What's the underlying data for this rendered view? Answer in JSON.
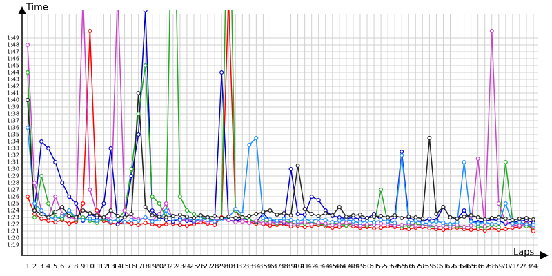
{
  "chart_data": {
    "type": "line",
    "x_label": "Laps",
    "y_label": "Time",
    "grid": true,
    "categories": [
      "1",
      "2",
      "3",
      "4",
      "5",
      "6",
      "7",
      "8",
      "9",
      "10",
      "11",
      "12",
      "13",
      "14",
      "15",
      "16",
      "17",
      "18",
      "19",
      "20",
      "21",
      "22",
      "23",
      "24",
      "25",
      "26",
      "27",
      "28",
      "29",
      "30",
      "31",
      "32",
      "33",
      "34",
      "35",
      "36",
      "37",
      "38",
      "39",
      "40",
      "41",
      "42",
      "43",
      "44",
      "45",
      "46",
      "47",
      "48",
      "49",
      "50",
      "51",
      "52",
      "53",
      "54",
      "55",
      "56",
      "57",
      "58",
      "59",
      "60",
      "61",
      "62",
      "63",
      "64",
      "65",
      "66",
      "67",
      "68",
      "69",
      "70",
      "71",
      "72",
      "73",
      "74"
    ],
    "ylim": [
      78,
      113
    ],
    "yticks": [
      {
        "value": 79,
        "label": "1:19"
      },
      {
        "value": 80,
        "label": "1:20"
      },
      {
        "value": 81,
        "label": "1:21"
      },
      {
        "value": 82,
        "label": "1:22"
      },
      {
        "value": 83,
        "label": "1:23"
      },
      {
        "value": 84,
        "label": "1:24"
      },
      {
        "value": 85,
        "label": "1:25"
      },
      {
        "value": 86,
        "label": "1:26"
      },
      {
        "value": 87,
        "label": "1:27"
      },
      {
        "value": 88,
        "label": "1:28"
      },
      {
        "value": 89,
        "label": "1:29"
      },
      {
        "value": 90,
        "label": "1:30"
      },
      {
        "value": 91,
        "label": "1:31"
      },
      {
        "value": 92,
        "label": "1:32"
      },
      {
        "value": 93,
        "label": "1:33"
      },
      {
        "value": 94,
        "label": "1:34"
      },
      {
        "value": 95,
        "label": "1:35"
      },
      {
        "value": 96,
        "label": "1:36"
      },
      {
        "value": 97,
        "label": "1:37"
      },
      {
        "value": 98,
        "label": "1:38"
      },
      {
        "value": 99,
        "label": "1:39"
      },
      {
        "value": 100,
        "label": "1:40"
      },
      {
        "value": 101,
        "label": "1:41"
      },
      {
        "value": 102,
        "label": "1:42"
      },
      {
        "value": 103,
        "label": "1:43"
      },
      {
        "value": 104,
        "label": "1:44"
      },
      {
        "value": 105,
        "label": "1:45"
      },
      {
        "value": 106,
        "label": "1:46"
      },
      {
        "value": 107,
        "label": "1:47"
      },
      {
        "value": 108,
        "label": "1:48"
      },
      {
        "value": 109,
        "label": "1:49"
      }
    ],
    "series": [
      {
        "color": "#ff0000",
        "values": [
          86,
          83.5,
          82.8,
          82.5,
          82.3,
          82.6,
          82.1,
          82.4,
          85,
          110,
          84,
          82.5,
          82.2,
          82,
          82.3,
          82.1,
          81.9,
          82.2,
          82,
          81.8,
          82,
          82.1,
          81.9,
          81.8,
          82,
          82.3,
          82.1,
          81.9,
          83,
          115,
          84,
          82.5,
          82.3,
          82.1,
          82,
          81.8,
          81.9,
          82,
          81.7,
          81.8,
          81.6,
          81.8,
          81.9,
          81.7,
          81.5,
          81.6,
          81.8,
          81.7,
          81.5,
          81.6,
          81.4,
          81.5,
          81.7,
          81.6,
          81.4,
          81.3,
          81.5,
          81.6,
          81.4,
          81.3,
          81.2,
          81.4,
          81.5,
          81.3,
          81.2,
          81.3,
          81.1,
          81.4,
          81.2,
          81.3,
          81.5,
          81.6,
          82.2,
          81
        ]
      },
      {
        "color": "#0000cc",
        "values": [
          100,
          84,
          94,
          93,
          91,
          88,
          86,
          85,
          82.5,
          83.5,
          83,
          85,
          93,
          82,
          83,
          89,
          95,
          113,
          84,
          83,
          82.6,
          82.4,
          82.8,
          82.5,
          82.3,
          82.7,
          83,
          82.5,
          104,
          82.6,
          82.4,
          82.8,
          82.6,
          82.3,
          83.6,
          82.5,
          82.4,
          82.2,
          90,
          83.5,
          83.4,
          86,
          85.5,
          84,
          83.2,
          83,
          82.8,
          83,
          82.7,
          82.9,
          83.5,
          82.6,
          82.4,
          83,
          92.5,
          83,
          82.5,
          82.4,
          82.8,
          82.6,
          84.5,
          83,
          82.8,
          84,
          82.5,
          82.3,
          82.4,
          82.7,
          82.5,
          82.1,
          82.3,
          82.4,
          82.6,
          82.2
        ]
      },
      {
        "color": "#22aa22",
        "values": [
          104,
          83,
          89,
          85,
          83,
          82.8,
          84,
          82.6,
          83,
          82.5,
          82.2,
          82.8,
          82.4,
          82.6,
          84,
          90,
          98,
          105,
          86,
          85,
          83,
          140,
          86,
          84,
          83.5,
          83,
          82.7,
          82.5,
          82.8,
          140,
          84,
          83,
          82.6,
          82.4,
          82.5,
          82.3,
          82.1,
          82.4,
          82.2,
          82,
          82.1,
          82.3,
          82,
          81.9,
          82.2,
          82,
          81.8,
          82.1,
          81.9,
          81.8,
          82,
          87,
          82.1,
          81.9,
          81.7,
          81.8,
          82,
          81.9,
          81.7,
          81.6,
          81.8,
          81.9,
          81.7,
          81.6,
          81.8,
          81.7,
          81.5,
          81.9,
          81.6,
          91,
          82.5,
          81.8,
          81.7,
          81.6
        ]
      },
      {
        "color": "#cc44cc",
        "values": [
          108,
          88,
          84,
          83,
          86,
          83.5,
          83,
          82.8,
          115,
          87,
          83.5,
          83,
          82.8,
          116,
          84,
          83,
          82.7,
          82.9,
          82.5,
          83.5,
          85,
          82.8,
          82.5,
          82.7,
          82.4,
          82.6,
          82.3,
          82.5,
          82.8,
          82.6,
          82.3,
          82.4,
          82.2,
          82.5,
          82.1,
          82.3,
          82.2,
          82.4,
          82,
          82.1,
          82.3,
          82,
          82.2,
          82.1,
          81.9,
          82,
          82.2,
          82.1,
          81.8,
          82,
          81.9,
          82.1,
          82,
          81.8,
          81.9,
          82.1,
          81.8,
          81.7,
          81.9,
          81.6,
          81.8,
          81.7,
          81.9,
          81.6,
          81.8,
          91.5,
          81.7,
          110,
          85,
          82.3,
          81.9,
          81.8,
          82,
          81.7
        ]
      },
      {
        "color": "#1e90ff",
        "values": [
          96,
          85,
          84,
          83,
          82.8,
          83.2,
          84,
          83,
          82.6,
          82.8,
          82.5,
          82.9,
          82.4,
          82.7,
          82.3,
          82.6,
          82.5,
          83,
          82.4,
          82.7,
          84,
          82.8,
          82.6,
          82.9,
          82.5,
          82.8,
          82.6,
          82.4,
          82.7,
          83,
          84.2,
          83.5,
          93.5,
          94.5,
          82.9,
          82.7,
          82.5,
          82.8,
          82.6,
          82.4,
          82.7,
          82.5,
          82.8,
          82.6,
          82.3,
          82.5,
          82.7,
          82.4,
          82.2,
          82.5,
          82.3,
          82.6,
          82.4,
          82.2,
          92,
          82.3,
          82.5,
          82.2,
          82.1,
          82.4,
          82.2,
          82,
          82.3,
          91,
          82.4,
          82.1,
          82.3,
          82,
          82.2,
          85,
          82.1,
          82.3,
          82,
          81.9
        ]
      },
      {
        "color": "#222222",
        "values": [
          100,
          84,
          83.5,
          83,
          83.8,
          84.5,
          83.2,
          83,
          84,
          83.6,
          83.3,
          83,
          84,
          83.2,
          83,
          83.5,
          101,
          84.5,
          83.3,
          83.1,
          83,
          83.2,
          83.4,
          83.1,
          82.9,
          83.3,
          83,
          83.2,
          82.9,
          83.1,
          82.9,
          83,
          83.2,
          83.5,
          83.8,
          84,
          83.4,
          83.6,
          83.3,
          90.5,
          84.2,
          83.5,
          83.2,
          83.6,
          83.3,
          84.5,
          83.1,
          83.3,
          83.4,
          82.9,
          83.1,
          83.2,
          83,
          83.3,
          82.9,
          83.1,
          83,
          82.8,
          94.5,
          83.5,
          84.5,
          83,
          82.8,
          83.1,
          83.3,
          83,
          82.7,
          82.9,
          83,
          82.8,
          82.6,
          82.8,
          82.9,
          82.7
        ]
      }
    ]
  }
}
